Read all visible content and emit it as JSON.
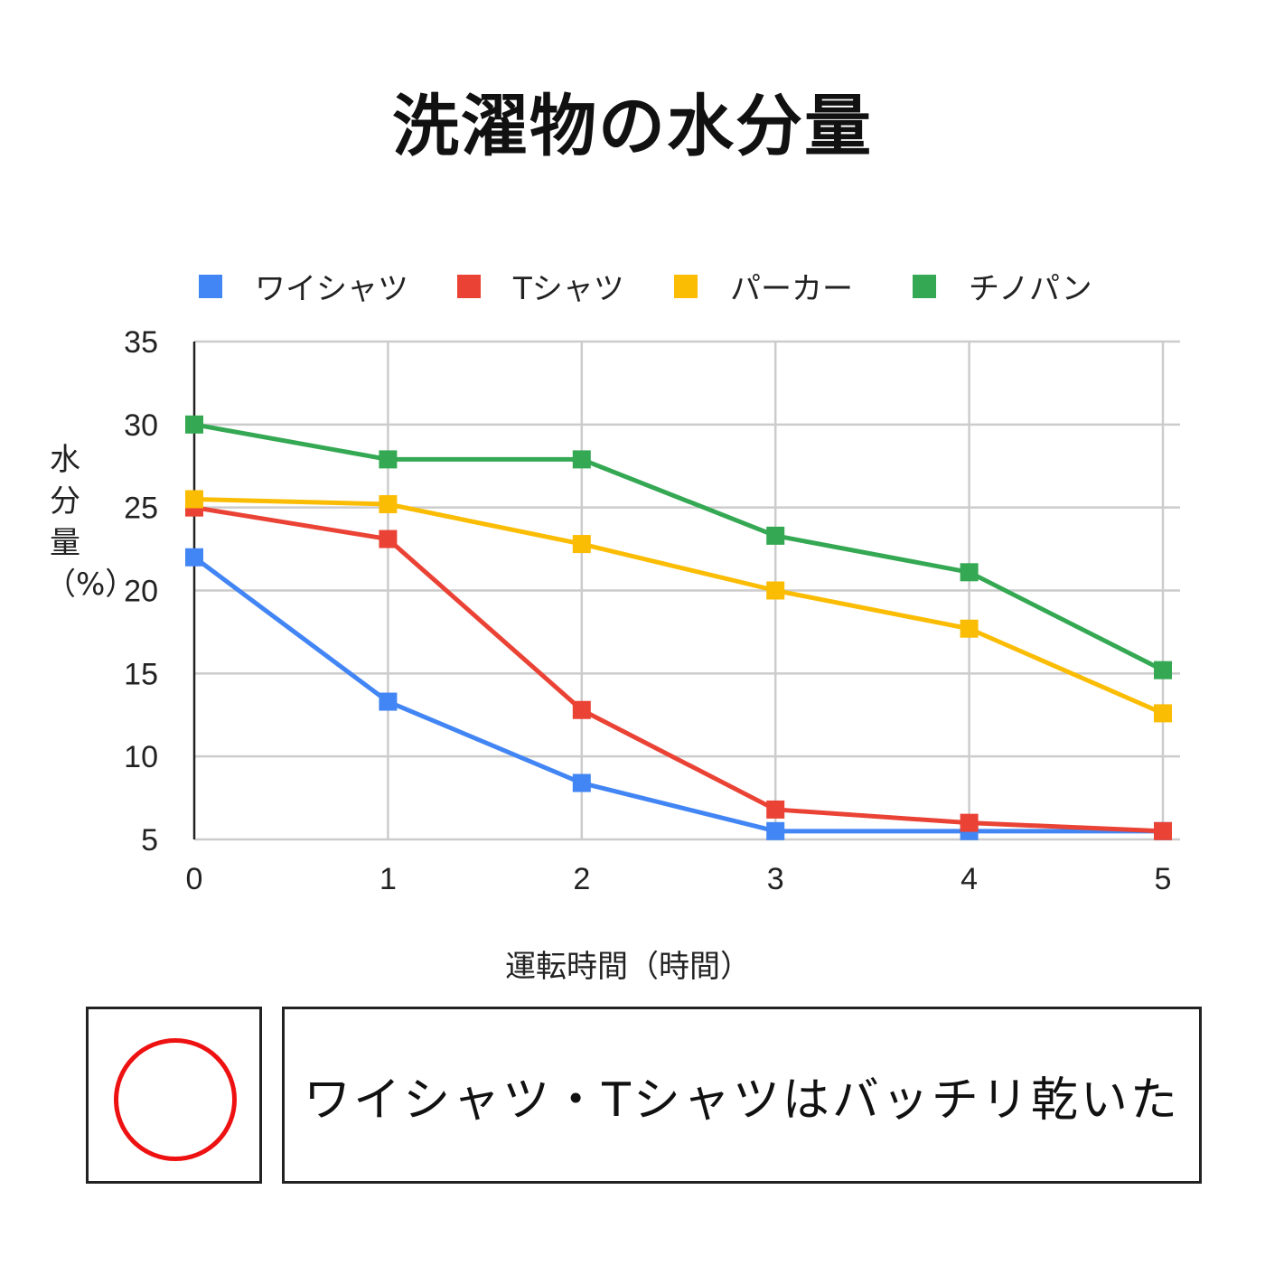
{
  "chart_data": {
    "type": "line",
    "title": "洗濯物の水分量",
    "xlabel": "運転時間（時間）",
    "ylabel": "水分量（%）",
    "x": [
      0,
      1,
      2,
      3,
      4,
      5
    ],
    "ylim": [
      5,
      35
    ],
    "yticks": [
      5,
      10,
      15,
      20,
      25,
      30,
      35
    ],
    "grid": true,
    "legend_position": "top",
    "series": [
      {
        "name": "ワイシャツ",
        "color": "#4285F4",
        "values": [
          22.0,
          13.3,
          8.4,
          5.5,
          5.5,
          5.5
        ]
      },
      {
        "name": "Tシャツ",
        "color": "#EA4335",
        "values": [
          25.0,
          23.1,
          12.8,
          6.8,
          6.0,
          5.5
        ]
      },
      {
        "name": "パーカー",
        "color": "#FBBC04",
        "values": [
          25.5,
          25.2,
          22.8,
          20.0,
          17.7,
          12.6
        ]
      },
      {
        "name": "チノパン",
        "color": "#34A853",
        "values": [
          30.0,
          27.9,
          27.9,
          23.3,
          21.1,
          15.2
        ]
      }
    ]
  },
  "evaluation": {
    "mark_color": "#ee1111",
    "comment": "ワイシャツ・Tシャツはバッチリ乾いた"
  }
}
